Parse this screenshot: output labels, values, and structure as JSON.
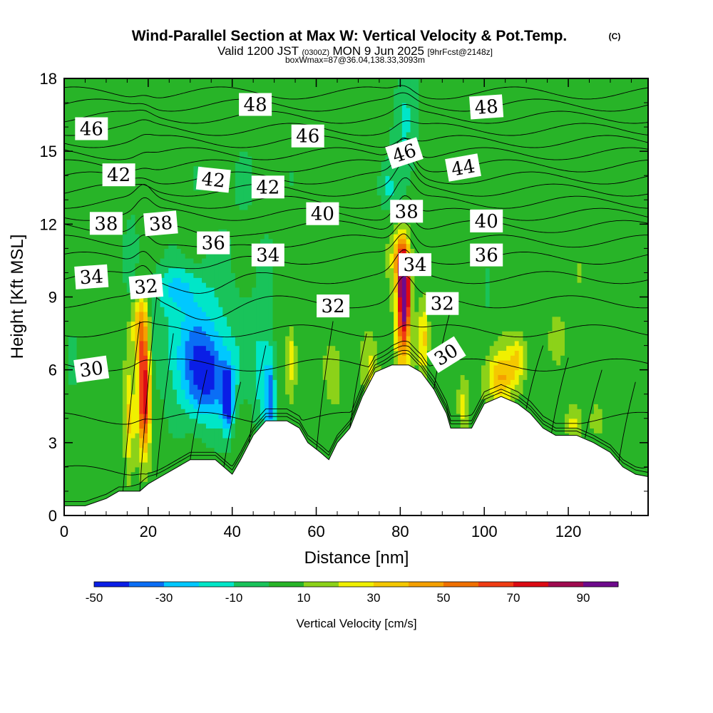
{
  "chart_data": {
    "type": "heatmap",
    "title": {
      "main": "Wind-Parallel Section at Max W: Vertical Velocity & Pot.Temp.",
      "copyright": "(C)",
      "line2_a": "Valid 1200 JST",
      "line2_b": "(0300Z)",
      "line2_c": "MON 9 Jun 2025",
      "line2_d": "[9hrFcst@2148z]",
      "line3": "boxWmax=87@36.04,138.33,3093m"
    },
    "xlabel": "Distance [nm]",
    "ylabel": "Height [Kft MSL]",
    "xlim": [
      0,
      139
    ],
    "ylim": [
      0,
      18
    ],
    "x_ticks": [
      "0",
      "20",
      "40",
      "60",
      "80",
      "100",
      "120"
    ],
    "y_ticks": [
      "0",
      "3",
      "6",
      "9",
      "12",
      "15",
      "18"
    ],
    "colorbar": {
      "label": "Vertical Velocity [cm/s]",
      "tick_labels": [
        "-50",
        "-30",
        "-10",
        "10",
        "30",
        "50",
        "70",
        "90"
      ],
      "levels": [
        -50,
        -40,
        -30,
        -20,
        -10,
        0,
        10,
        20,
        30,
        40,
        50,
        60,
        70,
        80,
        90,
        100
      ],
      "colors": [
        "#0a1ee6",
        "#0a6ef5",
        "#00c8ff",
        "#00e6c8",
        "#19c35a",
        "#28b428",
        "#8cd219",
        "#f0f000",
        "#f5c800",
        "#f5a000",
        "#f07000",
        "#f03c14",
        "#dc0a14",
        "#a00a50",
        "#6e0a8c"
      ]
    },
    "background_w": 5,
    "terrain": [
      [
        0,
        0.4
      ],
      [
        5,
        0.4
      ],
      [
        10,
        0.7
      ],
      [
        13,
        1.0
      ],
      [
        18,
        1.0
      ],
      [
        20,
        1.3
      ],
      [
        23,
        1.6
      ],
      [
        27,
        2.0
      ],
      [
        30,
        2.3
      ],
      [
        36,
        2.3
      ],
      [
        38,
        2.0
      ],
      [
        40,
        1.7
      ],
      [
        42,
        2.3
      ],
      [
        45,
        3.3
      ],
      [
        48,
        3.9
      ],
      [
        53,
        3.9
      ],
      [
        56,
        3.6
      ],
      [
        58,
        3.0
      ],
      [
        61,
        2.6
      ],
      [
        63,
        2.3
      ],
      [
        65,
        3.0
      ],
      [
        68,
        3.6
      ],
      [
        71,
        4.9
      ],
      [
        74,
        5.9
      ],
      [
        78,
        6.2
      ],
      [
        82,
        6.2
      ],
      [
        85,
        5.9
      ],
      [
        88,
        5.2
      ],
      [
        91,
        4.2
      ],
      [
        92,
        3.6
      ],
      [
        97,
        3.6
      ],
      [
        100,
        4.6
      ],
      [
        104,
        4.9
      ],
      [
        108,
        4.6
      ],
      [
        111,
        4.2
      ],
      [
        114,
        3.6
      ],
      [
        117,
        3.3
      ],
      [
        122,
        3.3
      ],
      [
        126,
        3.0
      ],
      [
        130,
        2.6
      ],
      [
        133,
        2.0
      ],
      [
        136,
        1.7
      ],
      [
        139,
        1.6
      ]
    ],
    "w_features": [
      {
        "x": 19,
        "z": 5.2,
        "sx": 1.4,
        "sz": 2.4,
        "w": 80
      },
      {
        "x": 18,
        "z": 7.8,
        "sx": 1.8,
        "sz": 1.4,
        "w": 35
      },
      {
        "x": 15.5,
        "z": 4.0,
        "sx": 1.2,
        "sz": 2.0,
        "w": 30
      },
      {
        "x": 81,
        "z": 9.3,
        "sx": 1.2,
        "sz": 1.6,
        "w": 90
      },
      {
        "x": 80.5,
        "z": 8.0,
        "sx": 1.8,
        "sz": 2.6,
        "w": 42
      },
      {
        "x": 80,
        "z": 10.6,
        "sx": 2.0,
        "sz": 1.0,
        "w": 35
      },
      {
        "x": 85.5,
        "z": 7.3,
        "sx": 1.2,
        "sz": 1.4,
        "w": 30
      },
      {
        "x": 104,
        "z": 5.7,
        "sx": 3.5,
        "sz": 1.1,
        "w": 35
      },
      {
        "x": 108,
        "z": 6.5,
        "sx": 1.8,
        "sz": 0.8,
        "w": 22
      },
      {
        "x": 54,
        "z": 6.4,
        "sx": 1.2,
        "sz": 1.3,
        "w": 26
      },
      {
        "x": 64,
        "z": 6.0,
        "sx": 2.0,
        "sz": 1.3,
        "w": 14
      },
      {
        "x": 73,
        "z": 6.0,
        "sx": 2.0,
        "sz": 1.2,
        "w": 16
      },
      {
        "x": 95,
        "z": 4.5,
        "sx": 1.2,
        "sz": 1.0,
        "w": 22
      },
      {
        "x": 121,
        "z": 3.8,
        "sx": 1.5,
        "sz": 0.6,
        "w": 16
      },
      {
        "x": 127,
        "z": 3.9,
        "sx": 1.5,
        "sz": 0.7,
        "w": 12
      },
      {
        "x": 34,
        "z": 5.5,
        "sx": 6.0,
        "sz": 1.8,
        "w": -40
      },
      {
        "x": 39,
        "z": 4.8,
        "sx": 1.2,
        "sz": 1.2,
        "w": -50
      },
      {
        "x": 31,
        "z": 7.3,
        "sx": 9.0,
        "sz": 2.2,
        "w": -25
      },
      {
        "x": 27,
        "z": 9.4,
        "sx": 6.0,
        "sz": 0.9,
        "w": -18
      },
      {
        "x": 49,
        "z": 4.8,
        "sx": 1.2,
        "sz": 1.8,
        "w": -35
      },
      {
        "x": 47,
        "z": 6.0,
        "sx": 2.5,
        "sz": 2.5,
        "w": -18
      },
      {
        "x": 81,
        "z": 15.8,
        "sx": 3.0,
        "sz": 2.8,
        "w": -16
      },
      {
        "x": 77,
        "z": 13.5,
        "sx": 2.0,
        "sz": 0.8,
        "w": -14
      },
      {
        "x": 2,
        "z": 6.5,
        "sx": 1.5,
        "sz": 1.2,
        "w": -15
      },
      {
        "x": 16,
        "z": 10.8,
        "sx": 1.5,
        "sz": 1.5,
        "w": -14
      },
      {
        "x": 101,
        "z": 9.5,
        "sx": 0.8,
        "sz": 1.0,
        "w": -13
      },
      {
        "x": 42,
        "z": 12.5,
        "sx": 16.0,
        "sz": 5.5,
        "w": -4
      },
      {
        "x": 120,
        "z": 8.0,
        "sx": 10.0,
        "sz": 3.0,
        "w": 4
      }
    ],
    "isentropes": {
      "levels": [
        28,
        29,
        30,
        31,
        32,
        33,
        34,
        35,
        36,
        37,
        38,
        39,
        40,
        41,
        42,
        43,
        44,
        45,
        46,
        47,
        48
      ],
      "base_heights": [
        0.3,
        1.8,
        4.0,
        6.2,
        7.6,
        8.8,
        9.8,
        10.6,
        11.3,
        11.9,
        12.4,
        12.9,
        13.4,
        13.9,
        14.4,
        14.9,
        15.4,
        15.9,
        16.4,
        16.9,
        17.4
      ]
    },
    "contour_labels": [
      {
        "text": "46",
        "x": 6.5,
        "z": 15.9,
        "rot": 0
      },
      {
        "text": "48",
        "x": 45.5,
        "z": 16.9,
        "rot": 0
      },
      {
        "text": "48",
        "x": 100.5,
        "z": 16.8,
        "rot": -4
      },
      {
        "text": "46",
        "x": 58,
        "z": 15.6,
        "rot": 0
      },
      {
        "text": "46",
        "x": 81,
        "z": 14.9,
        "rot": -18
      },
      {
        "text": "44",
        "x": 95,
        "z": 14.3,
        "rot": -10
      },
      {
        "text": "42",
        "x": 13,
        "z": 14.0,
        "rot": 0
      },
      {
        "text": "42",
        "x": 35.5,
        "z": 13.8,
        "rot": 6
      },
      {
        "text": "42",
        "x": 48.5,
        "z": 13.5,
        "rot": 0
      },
      {
        "text": "40",
        "x": 61.5,
        "z": 12.4,
        "rot": 0
      },
      {
        "text": "38",
        "x": 10,
        "z": 12.0,
        "rot": 0
      },
      {
        "text": "38",
        "x": 23,
        "z": 12.0,
        "rot": -5
      },
      {
        "text": "38",
        "x": 81.5,
        "z": 12.5,
        "rot": 0
      },
      {
        "text": "40",
        "x": 100.5,
        "z": 12.1,
        "rot": 0
      },
      {
        "text": "36",
        "x": 35.5,
        "z": 11.2,
        "rot": 0
      },
      {
        "text": "34",
        "x": 48.5,
        "z": 10.7,
        "rot": 0
      },
      {
        "text": "34",
        "x": 83.5,
        "z": 10.3,
        "rot": 0
      },
      {
        "text": "36",
        "x": 100.5,
        "z": 10.7,
        "rot": 0
      },
      {
        "text": "34",
        "x": 6.5,
        "z": 9.8,
        "rot": -4
      },
      {
        "text": "32",
        "x": 19.5,
        "z": 9.4,
        "rot": -5
      },
      {
        "text": "32",
        "x": 64,
        "z": 8.6,
        "rot": 0
      },
      {
        "text": "32",
        "x": 90,
        "z": 8.7,
        "rot": 0
      },
      {
        "text": "30",
        "x": 6.5,
        "z": 6.0,
        "rot": -8
      },
      {
        "text": "30",
        "x": 91,
        "z": 6.6,
        "rot": -32
      }
    ]
  }
}
